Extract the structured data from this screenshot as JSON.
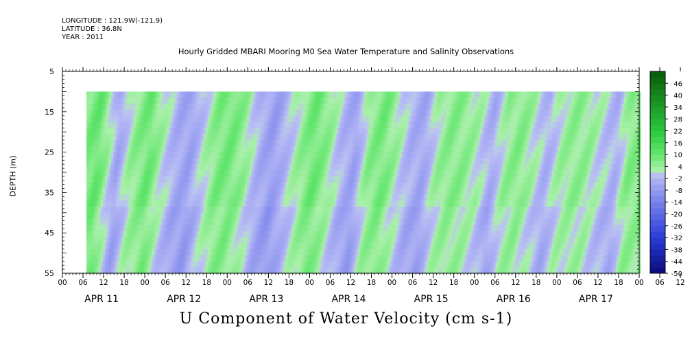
{
  "header": {
    "longitude": "LONGITUDE : 121.9W(-121.9)",
    "latitude": "LATITUDE : 36.8N",
    "year": "YEAR : 2011"
  },
  "title": "Hourly Gridded MBARI Mooring M0 Sea Water Temperature and Salinity Observations",
  "bottom_title": "U Component of Water Velocity (cm s-1)",
  "chart_data": {
    "type": "heatmap",
    "variable": "U Component of Water Velocity",
    "units": "cm s-1",
    "ylabel": "DEPTH (m)",
    "y_range": [
      5,
      55
    ],
    "y_ticks": [
      5,
      15,
      25,
      35,
      45,
      55
    ],
    "y_inverted": true,
    "data_depth_range": [
      10,
      55
    ],
    "x_hour_ticks": [
      "00",
      "06",
      "12",
      "18",
      "00",
      "06",
      "12",
      "18",
      "00",
      "06",
      "12",
      "18",
      "00",
      "06",
      "12",
      "18",
      "00",
      "06",
      "12",
      "18",
      "00",
      "06",
      "12",
      "18",
      "00",
      "06",
      "12",
      "18",
      "00",
      "06",
      "12",
      "18",
      "00"
    ],
    "x_day_labels": [
      "APR 11",
      "APR 12",
      "APR 13",
      "APR 14",
      "APR 15",
      "APR 16",
      "APR 17"
    ],
    "x_range_hours": [
      0,
      168
    ],
    "data_start_hour": 7,
    "colorbar_labels": [
      "46",
      "40",
      "34",
      "28",
      "22",
      "16",
      "10",
      "4",
      "-2",
      "-8",
      "-14",
      "-20",
      "-26",
      "-32",
      "-38",
      "-44",
      "-50"
    ],
    "colorbar_range": [
      -50,
      52
    ],
    "colorbar_step": 3,
    "colors": {
      "high": "#0a5a0a",
      "mid_pos": "#3ddc3d",
      "near_zero_pos": "#a8f0a8",
      "near_zero_neg": "#b0b4f4",
      "mid_neg": "#4a56e6",
      "low": "#0a0a7a"
    },
    "time_series_depth_averaged_u": [
      {
        "hour": 7,
        "u": 6
      },
      {
        "hour": 11,
        "u": 10
      },
      {
        "hour": 14,
        "u": 3
      },
      {
        "hour": 17,
        "u": -5
      },
      {
        "hour": 21,
        "u": 4
      },
      {
        "hour": 26,
        "u": 9
      },
      {
        "hour": 30,
        "u": 2
      },
      {
        "hour": 34,
        "u": -4
      },
      {
        "hour": 38,
        "u": -6
      },
      {
        "hour": 42,
        "u": 1
      },
      {
        "hour": 46,
        "u": 7
      },
      {
        "hour": 50,
        "u": 8
      },
      {
        "hour": 54,
        "u": 4
      },
      {
        "hour": 58,
        "u": -3
      },
      {
        "hour": 62,
        "u": -7
      },
      {
        "hour": 66,
        "u": -2
      },
      {
        "hour": 70,
        "u": 4
      },
      {
        "hour": 74,
        "u": 9
      },
      {
        "hour": 78,
        "u": 5
      },
      {
        "hour": 82,
        "u": -2
      },
      {
        "hour": 86,
        "u": -6
      },
      {
        "hour": 90,
        "u": 5
      },
      {
        "hour": 94,
        "u": 8
      },
      {
        "hour": 98,
        "u": 3
      },
      {
        "hour": 102,
        "u": -3
      },
      {
        "hour": 106,
        "u": -5
      },
      {
        "hour": 110,
        "u": 3
      },
      {
        "hour": 114,
        "u": 6
      },
      {
        "hour": 118,
        "u": 5
      },
      {
        "hour": 122,
        "u": 2
      },
      {
        "hour": 126,
        "u": -4
      },
      {
        "hour": 130,
        "u": 4
      },
      {
        "hour": 134,
        "u": 6
      },
      {
        "hour": 138,
        "u": 2
      },
      {
        "hour": 142,
        "u": -3
      },
      {
        "hour": 146,
        "u": 3
      },
      {
        "hour": 150,
        "u": 5
      },
      {
        "hour": 154,
        "u": 4
      },
      {
        "hour": 158,
        "u": 0
      },
      {
        "hour": 162,
        "u": -3
      },
      {
        "hour": 166,
        "u": 6
      }
    ]
  }
}
